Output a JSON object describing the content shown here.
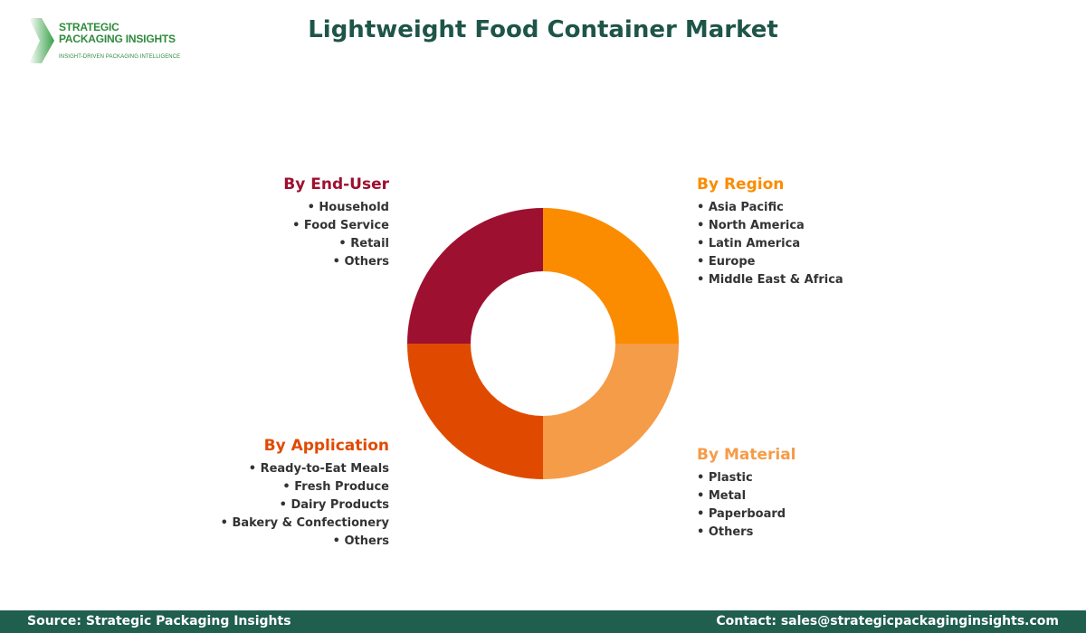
{
  "logo": {
    "line1": "STRATEGIC",
    "line2": "PACKAGING INSIGHTS",
    "tagline": "INSIGHT-DRIVEN PACKAGING INTELLIGENCE"
  },
  "title": "Lightweight Food Container Market",
  "segments": {
    "end_user": {
      "heading": "By End-User",
      "color": "#9e1030",
      "items": [
        "Household",
        "Food Service",
        "Retail",
        "Others"
      ]
    },
    "region": {
      "heading": "By Region",
      "color": "#fb8c00",
      "items": [
        "Asia Pacific",
        "North America",
        "Latin America",
        "Europe",
        "Middle East & Africa"
      ]
    },
    "application": {
      "heading": "By Application",
      "color": "#e04a00",
      "items": [
        "Ready-to-Eat Meals",
        "Fresh Produce",
        "Dairy Products",
        "Bakery & Confectionery",
        "Others"
      ]
    },
    "material": {
      "heading": "By Material",
      "color": "#f59c48",
      "items": [
        "Plastic",
        "Metal",
        "Paperboard",
        "Others"
      ]
    }
  },
  "donut_order": [
    "region",
    "material",
    "application",
    "end_user"
  ],
  "footer": {
    "source": "Source: Strategic Packaging Insights",
    "contact": "Contact: sales@strategicpackaginginsights.com"
  }
}
